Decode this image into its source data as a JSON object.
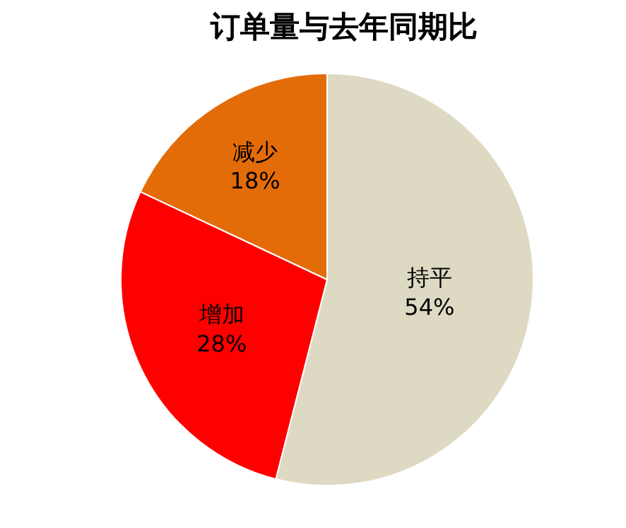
{
  "chart_data": {
    "type": "pie",
    "title": "订单量与去年同期比",
    "categories": [
      "持平",
      "增加",
      "减少"
    ],
    "values": [
      54,
      28,
      18
    ],
    "value_labels": [
      "54%",
      "28%",
      "18%"
    ],
    "colors": [
      "#ddd9c3",
      "#ff0000",
      "#e36c09"
    ],
    "legend": false
  }
}
